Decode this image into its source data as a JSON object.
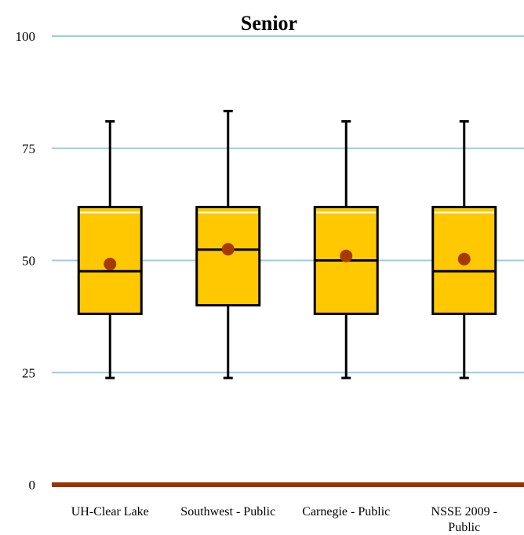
{
  "chart_data": {
    "type": "box",
    "title": "Senior",
    "xlabel": "",
    "ylabel": "",
    "ylim": [
      0,
      100
    ],
    "yticks": [
      0,
      25,
      50,
      75,
      100
    ],
    "grid": true,
    "categories": [
      [
        "UH-Clear Lake"
      ],
      [
        "Southwest - Public"
      ],
      [
        "Carnegie - Public"
      ],
      [
        "NSSE 2009 -",
        "Public"
      ]
    ],
    "boxes": [
      {
        "whisker_low": 23.8,
        "q1": 38.1,
        "median": 47.6,
        "q3": 61.9,
        "whisker_high": 81.0,
        "mean": 49.2
      },
      {
        "whisker_low": 23.8,
        "q1": 40.0,
        "median": 52.4,
        "q3": 61.9,
        "whisker_high": 83.3,
        "mean": 52.5
      },
      {
        "whisker_low": 23.8,
        "q1": 38.1,
        "median": 50.0,
        "q3": 61.9,
        "whisker_high": 81.0,
        "mean": 51.0
      },
      {
        "whisker_low": 23.8,
        "q1": 38.1,
        "median": 47.6,
        "q3": 61.9,
        "whisker_high": 81.0,
        "mean": 50.3
      }
    ],
    "colors": {
      "box_fill": "#FFC800",
      "mean_marker": "#A63A00",
      "gridline": "#9CC8F0",
      "baseline": "#993300"
    }
  }
}
